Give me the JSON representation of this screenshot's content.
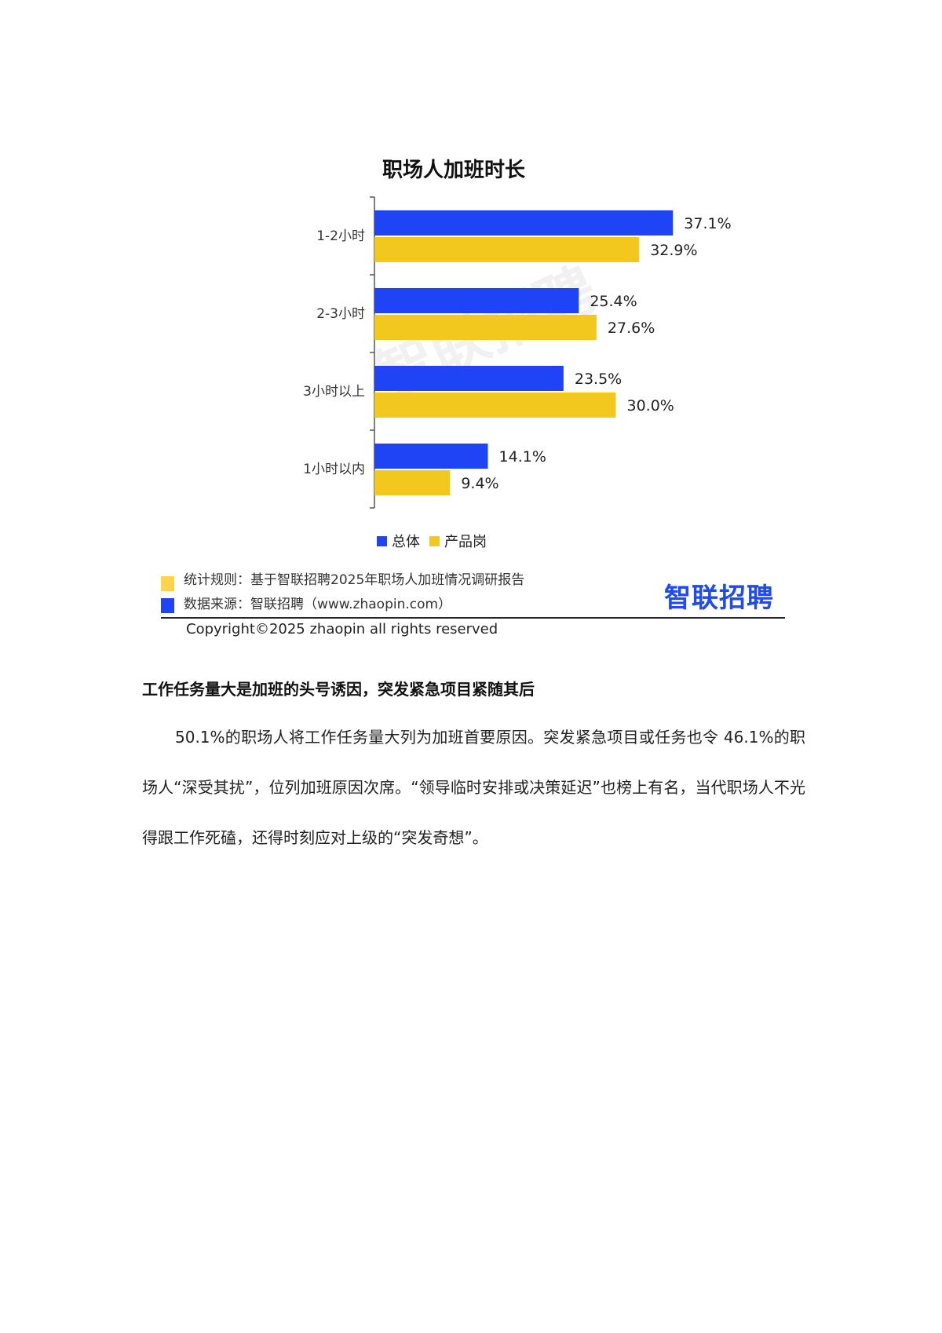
{
  "chart_data": {
    "type": "bar",
    "orientation": "horizontal",
    "title": "职场人加班时长",
    "categories": [
      "1-2小时",
      "2-3小时",
      "3小时以上",
      "1小时以内"
    ],
    "series": [
      {
        "name": "总体",
        "color": "#1f44f5",
        "values": [
          37.1,
          25.4,
          23.5,
          14.1
        ],
        "labels": [
          "37.1%",
          "25.4%",
          "23.5%",
          "14.1%"
        ]
      },
      {
        "name": "产品岗",
        "color": "#f2c81e",
        "values": [
          32.9,
          27.6,
          30.0,
          9.4
        ],
        "labels": [
          "32.9%",
          "27.6%",
          "30.0%",
          "9.4%"
        ]
      }
    ],
    "xlim": [
      0,
      40
    ],
    "grid": false,
    "legend": "bottom"
  },
  "watermark": "智联招聘",
  "footnote": {
    "rule": "统计规则：基于智联招聘2025年职场人加班情况调研报告",
    "rule_color": "#fcd34d",
    "source": "数据来源：智联招聘（www.zhaopin.com）",
    "source_color": "#1f44f5",
    "logo": "智联招聘",
    "copyright": "Copyright©2025 zhaopin all rights reserved"
  },
  "article": {
    "heading": "工作任务量大是加班的头号诱因，突发紧急项目紧随其后",
    "paragraph": "50.1%的职场人将工作任务量大列为加班首要原因。突发紧急项目或任务也令 46.1%的职场人“深受其扰”，位列加班原因次席。“领导临时安排或决策延迟”也榜上有名，当代职场人不光得跟工作死磕，还得时刻应对上级的“突发奇想”。"
  }
}
